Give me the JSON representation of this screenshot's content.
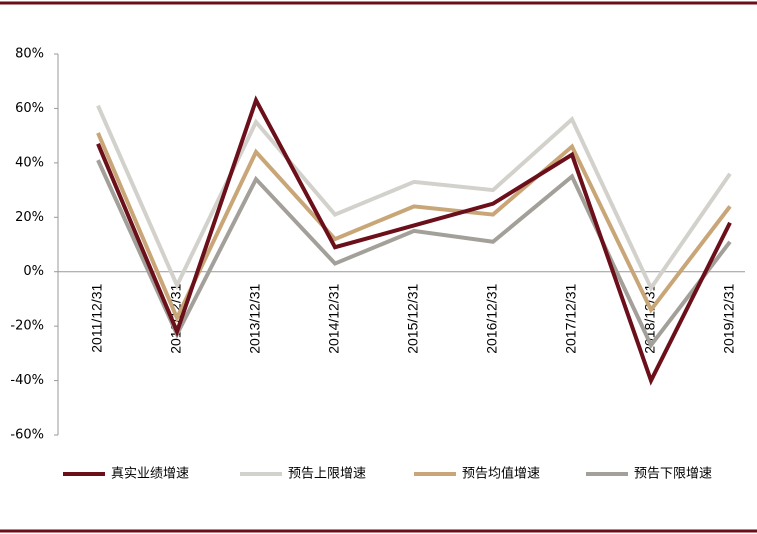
{
  "chart_data": {
    "type": "line",
    "categories": [
      "2011/12/31",
      "2012/12/31",
      "2013/12/31",
      "2014/12/31",
      "2015/12/31",
      "2016/12/31",
      "2017/12/31",
      "2018/12/31",
      "2019/12/31"
    ],
    "series": [
      {
        "name": "真实业绩增速",
        "color": "#6b0f1a",
        "values": [
          47,
          -22,
          63,
          9,
          17,
          25,
          43,
          -40,
          18
        ]
      },
      {
        "name": "预告上限增速",
        "color": "#d3d1cb",
        "values": [
          61,
          -5,
          55,
          21,
          33,
          30,
          56,
          -6,
          36
        ]
      },
      {
        "name": "预告均值增速",
        "color": "#c9a678",
        "values": [
          51,
          -17,
          44,
          12,
          24,
          21,
          46,
          -14,
          24
        ]
      },
      {
        "name": "预告下限增速",
        "color": "#a3a09a",
        "values": [
          41,
          -23,
          34,
          3,
          15,
          11,
          35,
          -27,
          11
        ]
      }
    ],
    "ylim": [
      -60,
      80
    ],
    "yticks": [
      {
        "value": -60,
        "label": "-60%"
      },
      {
        "value": -40,
        "label": "-40%"
      },
      {
        "value": -20,
        "label": "-20%"
      },
      {
        "value": 0,
        "label": "0%"
      },
      {
        "value": 20,
        "label": "20%"
      },
      {
        "value": 40,
        "label": "40%"
      },
      {
        "value": 60,
        "label": "60%"
      },
      {
        "value": 80,
        "label": "80%"
      }
    ]
  }
}
